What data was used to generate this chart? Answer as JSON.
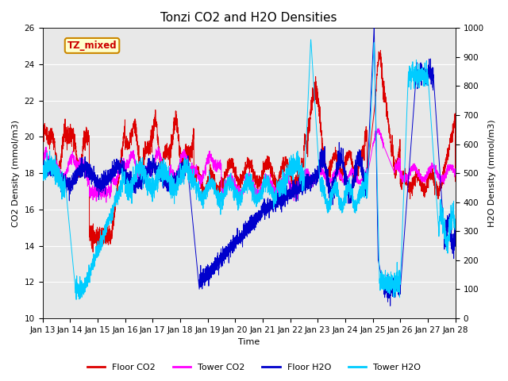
{
  "title": "Tonzi CO2 and H2O Densities",
  "xlabel": "Time",
  "ylabel_left": "CO2 Density (mmol/m3)",
  "ylabel_right": "H2O Density (mmol/m3)",
  "xlim": [
    0,
    15
  ],
  "ylim_left": [
    10,
    26
  ],
  "ylim_right": [
    0,
    1000
  ],
  "x_tick_labels": [
    "Jan 13",
    "Jan 14",
    "Jan 15",
    "Jan 16",
    "Jan 17",
    "Jan 18",
    "Jan 19",
    "Jan 20",
    "Jan 21",
    "Jan 22",
    "Jan 23",
    "Jan 24",
    "Jan 25",
    "Jan 26",
    "Jan 27",
    "Jan 28"
  ],
  "annotation_text": "TZ_mixed",
  "annotation_color": "#cc0000",
  "annotation_bg": "#ffffcc",
  "annotation_border": "#cc8800",
  "plot_bg": "#e8e8e8",
  "fig_bg": "#ffffff",
  "legend": [
    "Floor CO2",
    "Tower CO2",
    "Floor H2O",
    "Tower H2O"
  ],
  "legend_colors": [
    "#dd0000",
    "#ff00ff",
    "#0000cc",
    "#00ccff"
  ],
  "grid_color": "#ffffff",
  "title_fontsize": 11,
  "label_fontsize": 8,
  "tick_fontsize": 7.5
}
